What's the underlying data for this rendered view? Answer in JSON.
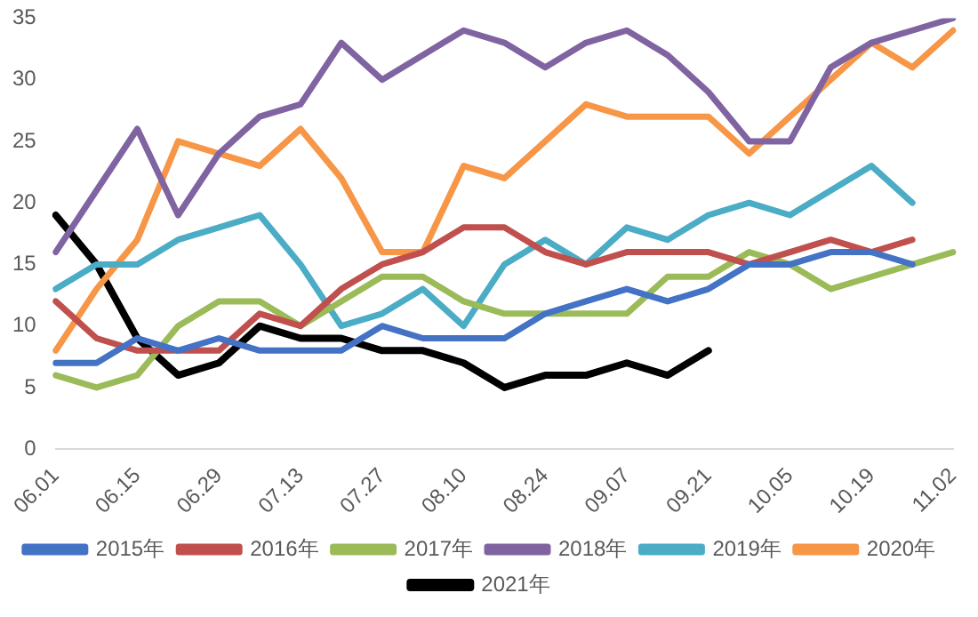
{
  "chart_data": {
    "type": "line",
    "categories": [
      "06.01",
      null,
      "06.15",
      null,
      "06.29",
      null,
      "07.13",
      null,
      "07.27",
      null,
      "08.10",
      null,
      "08.24",
      null,
      "09.07",
      null,
      "09.21",
      null,
      "10.05",
      null,
      "10.19",
      null,
      "11.02"
    ],
    "series": [
      {
        "name": "2015年",
        "color": "#4472c4",
        "values": [
          7,
          7,
          9,
          8,
          9,
          8,
          8,
          8,
          10,
          9,
          9,
          9,
          11,
          12,
          13,
          12,
          13,
          15,
          15,
          16,
          16,
          15,
          null
        ]
      },
      {
        "name": "2016年",
        "color": "#c0504d",
        "values": [
          12,
          9,
          8,
          8,
          8,
          11,
          10,
          13,
          15,
          16,
          18,
          18,
          16,
          15,
          16,
          16,
          16,
          15,
          16,
          17,
          16,
          17,
          null
        ]
      },
      {
        "name": "2017年",
        "color": "#9bbb59",
        "values": [
          6,
          5,
          6,
          10,
          12,
          12,
          10,
          12,
          14,
          14,
          12,
          11,
          11,
          11,
          11,
          14,
          14,
          16,
          15,
          13,
          14,
          15,
          16
        ]
      },
      {
        "name": "2018年",
        "color": "#8064a2",
        "values": [
          16,
          21,
          26,
          19,
          24,
          27,
          28,
          33,
          30,
          32,
          34,
          33,
          31,
          33,
          34,
          32,
          29,
          25,
          25,
          31,
          33,
          34,
          35
        ]
      },
      {
        "name": "2019年",
        "color": "#4bacc6",
        "values": [
          13,
          15,
          15,
          17,
          18,
          19,
          15,
          10,
          11,
          13,
          10,
          15,
          17,
          15,
          18,
          17,
          19,
          20,
          19,
          21,
          23,
          20,
          null
        ]
      },
      {
        "name": "2020年",
        "color": "#f79646",
        "values": [
          8,
          13,
          17,
          25,
          24,
          23,
          26,
          22,
          16,
          16,
          23,
          22,
          25,
          28,
          27,
          27,
          27,
          24,
          27,
          30,
          33,
          31,
          34
        ]
      },
      {
        "name": "2021年",
        "color": "#000000",
        "values": [
          19,
          15,
          9,
          6,
          7,
          10,
          9,
          9,
          8,
          8,
          7,
          5,
          6,
          6,
          7,
          6,
          8,
          null,
          null,
          null,
          null,
          null,
          null
        ]
      }
    ],
    "ylim": [
      0,
      35
    ],
    "yticks": [
      0,
      5,
      10,
      15,
      20,
      25,
      30,
      35
    ],
    "grid": false,
    "legend": "bottom",
    "marker": "none",
    "line_style": "solid"
  }
}
